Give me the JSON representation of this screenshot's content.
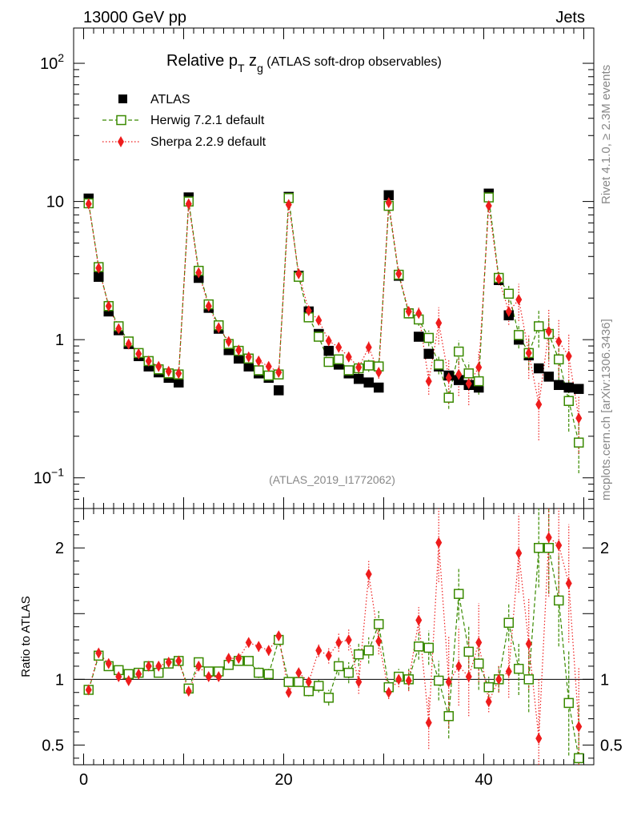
{
  "header": {
    "left": "13000 GeV pp",
    "right": "Jets"
  },
  "side": {
    "rivet": "Rivet 4.1.0, ≥ 2.3M events",
    "mcplots": "mcplots.cern.ch [arXiv:1306.3436]"
  },
  "title": {
    "main": "Relative p",
    "sub1": "T",
    "mid": " z",
    "sub2": "g",
    "rest": " (ATLAS soft-drop observables)"
  },
  "analysis_id": "(ATLAS_2019_I1772062)",
  "y_axis_ratio_label": "Ratio to ATLAS",
  "upper_ticks": [
    {
      "v": 100,
      "base": "10",
      "exp": "2"
    },
    {
      "v": 10,
      "base": "10",
      "exp": ""
    },
    {
      "v": 1,
      "base": "1",
      "exp": ""
    },
    {
      "v": 0.1,
      "base": "10",
      "exp": "−1"
    }
  ],
  "ratio_ticks": [
    {
      "v": 2,
      "label": "2"
    },
    {
      "v": 1,
      "label": "1"
    },
    {
      "v": 0.5,
      "label": "0.5"
    }
  ],
  "x_ticks": [
    {
      "v": 0,
      "label": "0"
    },
    {
      "v": 20,
      "label": "20"
    },
    {
      "v": 40,
      "label": "40"
    }
  ],
  "chart_data": {
    "type": "scatter",
    "title": "Relative pT zg (ATLAS soft-drop observables)",
    "xlabel": "",
    "ylabel": "",
    "xlim": [
      -1,
      51
    ],
    "ylim": [
      0.06,
      180
    ],
    "yscale": "log",
    "ratio_ylim": [
      0.35,
      2.3
    ],
    "legend_position": "top-left",
    "x": [
      0.5,
      1.5,
      2.5,
      3.5,
      4.5,
      5.5,
      6.5,
      7.5,
      8.5,
      9.5,
      10.5,
      11.5,
      12.5,
      13.5,
      14.5,
      15.5,
      16.5,
      17.5,
      18.5,
      19.5,
      20.5,
      21.5,
      22.5,
      23.5,
      24.5,
      25.5,
      26.5,
      27.5,
      28.5,
      29.5,
      30.5,
      31.5,
      32.5,
      33.5,
      34.5,
      35.5,
      36.5,
      37.5,
      38.5,
      39.5,
      40.5,
      41.5,
      42.5,
      43.5,
      44.5,
      45.5,
      46.5,
      47.5,
      48.5,
      49.5
    ],
    "series": [
      {
        "name": "ATLAS",
        "color": "#000000",
        "marker": "filled-square",
        "values": [
          10.5,
          2.85,
          1.6,
          1.17,
          0.93,
          0.76,
          0.64,
          0.58,
          0.53,
          0.49,
          10.7,
          2.8,
          1.7,
          1.2,
          0.84,
          0.73,
          0.64,
          0.57,
          0.53,
          0.43,
          10.8,
          2.9,
          1.6,
          1.1,
          0.83,
          0.66,
          0.57,
          0.52,
          0.49,
          0.45,
          11.1,
          2.9,
          1.55,
          1.05,
          0.79,
          0.64,
          0.55,
          0.51,
          0.47,
          0.45,
          11.4,
          2.7,
          1.5,
          1.0,
          0.77,
          0.62,
          0.54,
          0.47,
          0.45,
          0.44
        ],
        "ratio": []
      },
      {
        "name": "Herwig 7.2.1 default",
        "color": "#3a8a00",
        "marker": "open-square",
        "linestyle": "dashed",
        "values": [
          9.7,
          3.35,
          1.75,
          1.25,
          0.97,
          0.8,
          0.7,
          0.61,
          0.57,
          0.56,
          10.0,
          3.15,
          1.8,
          1.27,
          0.93,
          0.83,
          0.73,
          0.6,
          0.55,
          0.56,
          10.6,
          2.85,
          1.45,
          1.05,
          0.69,
          0.72,
          0.6,
          0.62,
          0.65,
          0.64,
          9.3,
          2.95,
          1.55,
          1.4,
          1.03,
          0.66,
          0.38,
          0.82,
          0.57,
          0.5,
          10.7,
          2.8,
          2.15,
          1.08,
          0.8,
          1.25,
          1.1,
          0.72,
          0.36,
          0.18
        ],
        "ratio": [
          0.92,
          1.18,
          1.1,
          1.07,
          1.04,
          1.05,
          1.1,
          1.05,
          1.12,
          1.14,
          0.93,
          1.13,
          1.06,
          1.06,
          1.11,
          1.14,
          1.14,
          1.05,
          1.04,
          1.3,
          0.98,
          0.98,
          0.91,
          0.95,
          0.86,
          1.1,
          1.05,
          1.19,
          1.22,
          1.42,
          0.94,
          1.02,
          1.0,
          1.25,
          1.24,
          0.99,
          0.72,
          1.65,
          1.21,
          1.12,
          0.94,
          1.0,
          1.43,
          1.08,
          1.0,
          2.0,
          2.0,
          1.6,
          0.82,
          0.4
        ],
        "errors": [
          0.01,
          0.01,
          0.01,
          0.01,
          0.01,
          0.01,
          0.01,
          0.01,
          0.01,
          0.01,
          0.01,
          0.02,
          0.02,
          0.02,
          0.03,
          0.03,
          0.03,
          0.04,
          0.04,
          0.04,
          0.03,
          0.03,
          0.04,
          0.05,
          0.06,
          0.07,
          0.08,
          0.09,
          0.1,
          0.1,
          0.05,
          0.06,
          0.08,
          0.1,
          0.13,
          0.15,
          0.17,
          0.2,
          0.2,
          0.2,
          0.08,
          0.1,
          0.14,
          0.2,
          0.25,
          0.3,
          0.35,
          0.35,
          0.4,
          0.4
        ]
      },
      {
        "name": "Sherpa 2.2.9 default",
        "color": "#ee1c1c",
        "marker": "filled-diamond",
        "linestyle": "dotted",
        "values": [
          9.6,
          3.3,
          1.75,
          1.2,
          0.93,
          0.79,
          0.7,
          0.64,
          0.59,
          0.57,
          9.6,
          3.05,
          1.75,
          1.22,
          0.97,
          0.84,
          0.75,
          0.7,
          0.64,
          0.58,
          9.5,
          3.0,
          1.62,
          1.38,
          0.98,
          0.88,
          0.75,
          0.63,
          0.88,
          0.58,
          9.8,
          3.0,
          1.6,
          1.55,
          0.5,
          1.32,
          0.53,
          0.56,
          0.48,
          0.63,
          9.3,
          2.75,
          1.6,
          1.95,
          0.8,
          0.34,
          1.15,
          0.97,
          0.76,
          0.27
        ],
        "ratio": [
          0.92,
          1.2,
          1.12,
          1.02,
          0.99,
          1.04,
          1.1,
          1.1,
          1.13,
          1.14,
          0.91,
          1.1,
          1.02,
          1.02,
          1.16,
          1.16,
          1.28,
          1.25,
          1.22,
          1.33,
          0.9,
          1.05,
          0.98,
          1.22,
          1.18,
          1.28,
          1.3,
          0.98,
          1.8,
          1.29,
          0.9,
          1.0,
          0.99,
          1.45,
          0.67,
          2.04,
          0.98,
          1.1,
          1.02,
          1.28,
          0.83,
          1.0,
          1.06,
          1.96,
          1.27,
          0.55,
          2.08,
          2.02,
          1.73,
          0.64
        ],
        "errors": [
          0.01,
          0.01,
          0.01,
          0.01,
          0.01,
          0.01,
          0.01,
          0.01,
          0.01,
          0.01,
          0.01,
          0.02,
          0.02,
          0.02,
          0.03,
          0.03,
          0.03,
          0.04,
          0.04,
          0.04,
          0.03,
          0.03,
          0.04,
          0.05,
          0.06,
          0.07,
          0.08,
          0.09,
          0.1,
          0.1,
          0.05,
          0.06,
          0.08,
          0.1,
          0.2,
          0.3,
          0.35,
          0.3,
          0.3,
          0.3,
          0.08,
          0.1,
          0.2,
          0.3,
          0.35,
          0.45,
          0.45,
          0.45,
          0.45,
          0.45
        ]
      }
    ]
  }
}
